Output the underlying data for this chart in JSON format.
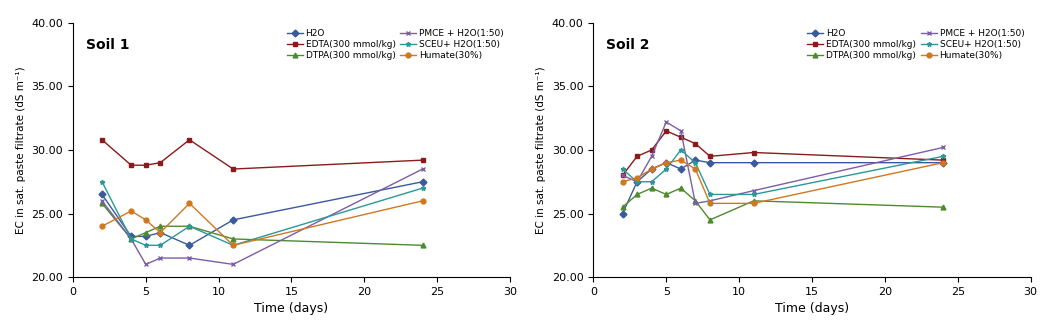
{
  "soil1": {
    "title": "Soil 1",
    "time": [
      2,
      4,
      5,
      6,
      8,
      11,
      24
    ],
    "H2O": [
      26.5,
      23.2,
      23.2,
      23.5,
      22.5,
      24.5,
      27.5
    ],
    "EDTA": [
      30.8,
      28.8,
      28.8,
      29.0,
      30.8,
      28.5,
      29.2
    ],
    "DTPA": [
      25.8,
      23.0,
      23.5,
      24.0,
      24.0,
      23.0,
      22.5
    ],
    "PMCE": [
      26.0,
      23.0,
      21.0,
      21.5,
      21.5,
      21.0,
      28.5
    ],
    "SCEU": [
      27.5,
      23.0,
      22.5,
      22.5,
      24.0,
      22.5,
      27.0
    ],
    "Humate": [
      24.0,
      25.2,
      24.5,
      23.5,
      25.8,
      22.5,
      26.0
    ]
  },
  "soil2": {
    "title": "Soil 2",
    "time": [
      2,
      3,
      4,
      5,
      6,
      7,
      8,
      11,
      24
    ],
    "H2O": [
      25.0,
      27.5,
      28.5,
      29.0,
      28.5,
      29.2,
      29.0,
      29.0,
      29.0
    ],
    "EDTA": [
      28.0,
      29.5,
      30.0,
      31.5,
      31.0,
      30.5,
      29.5,
      29.8,
      29.2
    ],
    "DTPA": [
      25.5,
      26.5,
      27.0,
      26.5,
      27.0,
      26.0,
      24.5,
      26.0,
      25.5
    ],
    "PMCE": [
      28.0,
      27.5,
      29.5,
      32.2,
      31.5,
      25.8,
      26.0,
      26.8,
      30.2
    ],
    "SCEU": [
      28.5,
      27.5,
      27.5,
      28.5,
      30.0,
      29.0,
      26.5,
      26.5,
      29.5
    ],
    "Humate": [
      27.5,
      27.8,
      28.5,
      29.0,
      29.2,
      28.5,
      25.8,
      25.8,
      29.0
    ]
  },
  "colors": {
    "H2O": "#3a5a9e",
    "EDTA": "#8b1a1a",
    "DTPA": "#4e8a2e",
    "PMCE": "#7b5ea7",
    "SCEU": "#2a9898",
    "Humate": "#d07820"
  },
  "markers": {
    "H2O": "D",
    "EDTA": "s",
    "DTPA": "^",
    "PMCE": "x",
    "SCEU": "*",
    "Humate": "o"
  },
  "legend_labels": {
    "H2O": "H2O",
    "EDTA": "EDTA(300 mmol/kg)",
    "DTPA": "DTPA(300 mmol/kg)",
    "PMCE": "PMCE + H2O(1:50)",
    "SCEU": "SCEU+ H2O(1:50)",
    "Humate": "Humate(30%)"
  },
  "ylabel": "EC in sat. paste filtrate (dS m⁻¹)",
  "xlabel": "Time (days)",
  "ylim": [
    20.0,
    40.0
  ],
  "xlim": [
    0,
    30
  ],
  "yticks": [
    20.0,
    25.0,
    30.0,
    35.0,
    40.0
  ],
  "xticks": [
    0,
    5,
    10,
    15,
    20,
    25,
    30
  ]
}
